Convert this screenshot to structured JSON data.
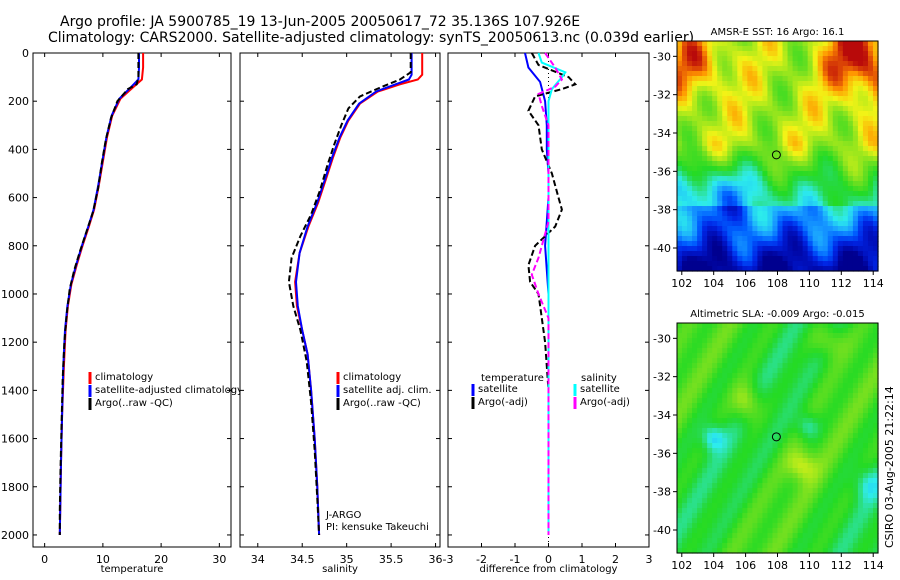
{
  "header": {
    "line1": "Argo profile: JA 5900785_19 13-Jun-2005 20050617_72 35.136S 107.926E",
    "line2": "Climatology: CARS2000. Satellite-adjusted climatology: synTS_20050613.nc (0.039d earlier)"
  },
  "side_label": "CSIRO 03-Aug-2005 21:22:14",
  "colors": {
    "climatology": "#ff0000",
    "satellite": "#0000ff",
    "argo": "#000000",
    "salinity_satellite": "#00ffff",
    "salinity_argo": "#ff00ff"
  },
  "chart_data": [
    {
      "type": "line",
      "id": "temperature",
      "xlabel": "temperature",
      "ylabel": "",
      "xlim": [
        -2,
        32
      ],
      "ylim": [
        2050,
        0
      ],
      "xticks": [
        0,
        10,
        20,
        30
      ],
      "yticks": [
        0,
        200,
        400,
        600,
        800,
        1000,
        1200,
        1400,
        1600,
        1800,
        2000
      ],
      "legend": [
        "climatology",
        "satellite-adjusted climatology",
        "Argo(..raw -QC)"
      ],
      "series": [
        {
          "name": "climatology",
          "color": "#ff0000",
          "dash": false,
          "points": [
            [
              16.9,
              0
            ],
            [
              16.9,
              60
            ],
            [
              16.7,
              110
            ],
            [
              15.3,
              140
            ],
            [
              13,
              190
            ],
            [
              11.6,
              260
            ],
            [
              10.7,
              350
            ],
            [
              10,
              450
            ],
            [
              9.3,
              550
            ],
            [
              8.5,
              650
            ],
            [
              7.6,
              720
            ],
            [
              6.5,
              800
            ],
            [
              5.5,
              880
            ],
            [
              4.6,
              960
            ],
            [
              4,
              1050
            ],
            [
              3.6,
              1150
            ],
            [
              3.3,
              1300
            ],
            [
              3,
              1500
            ],
            [
              2.8,
              1700
            ],
            [
              2.7,
              1850
            ],
            [
              2.6,
              2000
            ]
          ]
        },
        {
          "name": "satellite-adjusted climatology",
          "color": "#0000ff",
          "dash": false,
          "points": [
            [
              16.2,
              0
            ],
            [
              16.2,
              60
            ],
            [
              16.1,
              110
            ],
            [
              14.9,
              140
            ],
            [
              12.8,
              190
            ],
            [
              11.5,
              260
            ],
            [
              10.6,
              350
            ],
            [
              9.9,
              450
            ],
            [
              9.2,
              550
            ],
            [
              8.4,
              650
            ],
            [
              7.5,
              720
            ],
            [
              6.4,
              800
            ],
            [
              5.4,
              880
            ],
            [
              4.5,
              960
            ],
            [
              3.9,
              1050
            ],
            [
              3.5,
              1150
            ],
            [
              3.2,
              1300
            ],
            [
              3,
              1500
            ],
            [
              2.8,
              1700
            ],
            [
              2.7,
              1850
            ],
            [
              2.6,
              2000
            ]
          ]
        },
        {
          "name": "Argo(..raw -QC)",
          "color": "#000000",
          "dash": true,
          "points": [
            [
              16.1,
              0
            ],
            [
              16.1,
              100
            ],
            [
              15.8,
              130
            ],
            [
              14.3,
              150
            ],
            [
              12.5,
              200
            ],
            [
              11.4,
              270
            ],
            [
              10.5,
              360
            ],
            [
              9.8,
              460
            ],
            [
              9.2,
              560
            ],
            [
              8.3,
              660
            ],
            [
              7.2,
              740
            ],
            [
              6.1,
              820
            ],
            [
              5.1,
              900
            ],
            [
              4.3,
              980
            ],
            [
              3.8,
              1080
            ],
            [
              3.4,
              1200
            ],
            [
              3.1,
              1350
            ],
            [
              2.9,
              1550
            ],
            [
              2.7,
              1750
            ],
            [
              2.6,
              1900
            ],
            [
              2.6,
              2000
            ]
          ]
        }
      ]
    },
    {
      "type": "line",
      "id": "salinity",
      "xlabel": "salinity",
      "ylabel": "",
      "xlim": [
        33.8,
        36.05
      ],
      "ylim": [
        2050,
        0
      ],
      "xticks": [
        34,
        34.5,
        35,
        35.5,
        36
      ],
      "legend": [
        "climatology",
        "satellite adj. clim.",
        "Argo(..raw -QC)"
      ],
      "annotation": [
        "J-ARGO",
        "PI: kensuke Takeuchi"
      ],
      "series": [
        {
          "name": "climatology",
          "color": "#ff0000",
          "dash": false,
          "points": [
            [
              35.85,
              0
            ],
            [
              35.85,
              90
            ],
            [
              35.8,
              110
            ],
            [
              35.6,
              130
            ],
            [
              35.35,
              160
            ],
            [
              35.15,
              210
            ],
            [
              35.02,
              280
            ],
            [
              34.93,
              350
            ],
            [
              34.85,
              430
            ],
            [
              34.77,
              520
            ],
            [
              34.68,
              620
            ],
            [
              34.57,
              720
            ],
            [
              34.47,
              830
            ],
            [
              34.42,
              950
            ],
            [
              34.44,
              1050
            ],
            [
              34.5,
              1150
            ],
            [
              34.56,
              1250
            ],
            [
              34.6,
              1400
            ],
            [
              34.64,
              1600
            ],
            [
              34.67,
              1800
            ],
            [
              34.69,
              2000
            ]
          ]
        },
        {
          "name": "satellite adj. clim.",
          "color": "#0000ff",
          "dash": false,
          "points": [
            [
              35.73,
              0
            ],
            [
              35.73,
              90
            ],
            [
              35.7,
              110
            ],
            [
              35.55,
              130
            ],
            [
              35.33,
              160
            ],
            [
              35.14,
              210
            ],
            [
              35.01,
              280
            ],
            [
              34.92,
              350
            ],
            [
              34.84,
              430
            ],
            [
              34.76,
              520
            ],
            [
              34.67,
              620
            ],
            [
              34.56,
              720
            ],
            [
              34.47,
              830
            ],
            [
              34.43,
              950
            ],
            [
              34.45,
              1050
            ],
            [
              34.5,
              1150
            ],
            [
              34.56,
              1250
            ],
            [
              34.6,
              1400
            ],
            [
              34.64,
              1600
            ],
            [
              34.67,
              1800
            ],
            [
              34.69,
              2000
            ]
          ]
        },
        {
          "name": "Argo(..raw -QC)",
          "color": "#000000",
          "dash": true,
          "points": [
            [
              35.72,
              0
            ],
            [
              35.72,
              80
            ],
            [
              35.6,
              110
            ],
            [
              35.4,
              140
            ],
            [
              35.15,
              180
            ],
            [
              35.02,
              230
            ],
            [
              34.94,
              300
            ],
            [
              34.86,
              380
            ],
            [
              34.78,
              470
            ],
            [
              34.7,
              570
            ],
            [
              34.6,
              670
            ],
            [
              34.48,
              760
            ],
            [
              34.38,
              850
            ],
            [
              34.35,
              950
            ],
            [
              34.4,
              1050
            ],
            [
              34.48,
              1150
            ],
            [
              34.55,
              1280
            ],
            [
              34.6,
              1450
            ],
            [
              34.64,
              1650
            ],
            [
              34.67,
              1850
            ],
            [
              34.69,
              2000
            ]
          ]
        }
      ]
    },
    {
      "type": "line",
      "id": "difference",
      "xlabel": "difference from climatology",
      "ylabel": "",
      "xlim": [
        -3,
        3
      ],
      "ylim": [
        2050,
        0
      ],
      "xticks": [
        -3,
        -2,
        -1,
        0,
        1,
        2,
        3
      ],
      "legend_left_title": "temperature",
      "legend_left": [
        "satellite",
        "Argo(-adj)"
      ],
      "legend_right_title": "salinity",
      "legend_right": [
        "satellite",
        "Argo(-adj)"
      ],
      "series": [
        {
          "name": "temperature satellite",
          "color": "#0000ff",
          "dash": false,
          "points": [
            [
              -0.7,
              0
            ],
            [
              -0.6,
              60
            ],
            [
              -0.25,
              120
            ],
            [
              -0.1,
              200
            ],
            [
              -0.05,
              300
            ],
            [
              -0.05,
              400
            ],
            [
              0,
              500
            ],
            [
              0,
              600
            ],
            [
              -0.05,
              700
            ],
            [
              -0.1,
              800
            ],
            [
              -0.05,
              900
            ],
            [
              0,
              1000
            ],
            [
              0,
              1200
            ],
            [
              0,
              1400
            ],
            [
              0,
              1600
            ],
            [
              0,
              1800
            ],
            [
              0,
              2000
            ]
          ]
        },
        {
          "name": "temperature Argo(-adj)",
          "color": "#000000",
          "dash": true,
          "points": [
            [
              -0.5,
              0
            ],
            [
              -0.3,
              50
            ],
            [
              0.6,
              100
            ],
            [
              0.8,
              130
            ],
            [
              0.4,
              150
            ],
            [
              -0.4,
              180
            ],
            [
              -0.6,
              240
            ],
            [
              -0.3,
              300
            ],
            [
              -0.2,
              400
            ],
            [
              0.1,
              500
            ],
            [
              0.3,
              600
            ],
            [
              0.4,
              650
            ],
            [
              0.2,
              720
            ],
            [
              -0.4,
              800
            ],
            [
              -0.6,
              880
            ],
            [
              -0.55,
              950
            ],
            [
              -0.3,
              1000
            ],
            [
              -0.1,
              1200
            ],
            [
              0,
              1400
            ],
            [
              0,
              1600
            ],
            [
              0,
              1800
            ],
            [
              0,
              2000
            ]
          ]
        },
        {
          "name": "salinity satellite",
          "color": "#00ffff",
          "dash": false,
          "points": [
            [
              -0.3,
              0
            ],
            [
              -0.2,
              40
            ],
            [
              0.5,
              80
            ],
            [
              0.4,
              100
            ],
            [
              0.1,
              150
            ],
            [
              0,
              200
            ],
            [
              0,
              300
            ],
            [
              0,
              500
            ],
            [
              0,
              700
            ],
            [
              0,
              900
            ],
            [
              0,
              1100
            ],
            [
              0,
              1300
            ],
            [
              0,
              1500
            ],
            [
              0,
              1700
            ],
            [
              0,
              1900
            ],
            [
              0,
              2000
            ]
          ]
        },
        {
          "name": "salinity Argo(-adj)",
          "color": "#ff00ff",
          "dash": true,
          "points": [
            [
              -0.1,
              0
            ],
            [
              0.2,
              60
            ],
            [
              0.4,
              110
            ],
            [
              0.2,
              140
            ],
            [
              -0.3,
              170
            ],
            [
              -0.2,
              220
            ],
            [
              0,
              300
            ],
            [
              0,
              500
            ],
            [
              0,
              700
            ],
            [
              -0.3,
              850
            ],
            [
              -0.5,
              920
            ],
            [
              -0.3,
              1000
            ],
            [
              0,
              1100
            ],
            [
              0,
              1300
            ],
            [
              0,
              1500
            ],
            [
              0,
              1700
            ],
            [
              0,
              2000
            ]
          ]
        }
      ]
    },
    {
      "type": "heatmap",
      "id": "sst_map",
      "title": "AMSR-E SST: 16 Argo: 16.1",
      "xlim": [
        101.7,
        114.3
      ],
      "ylim": [
        -41.2,
        -29.2
      ],
      "xticks": [
        102,
        104,
        106,
        108,
        110,
        112,
        114
      ],
      "yticks": [
        -30,
        -32,
        -34,
        -36,
        -38,
        -40
      ],
      "marker": [
        107.93,
        -35.14
      ]
    },
    {
      "type": "heatmap",
      "id": "sla_map",
      "title": "Altimetric SLA: -0.009 Argo: -0.015",
      "xlim": [
        101.7,
        114.3
      ],
      "ylim": [
        -41.2,
        -29.2
      ],
      "xticks": [
        102,
        104,
        106,
        108,
        110,
        112,
        114
      ],
      "yticks": [
        -30,
        -32,
        -34,
        -36,
        -38,
        -40
      ],
      "marker": [
        107.93,
        -35.14
      ]
    }
  ]
}
